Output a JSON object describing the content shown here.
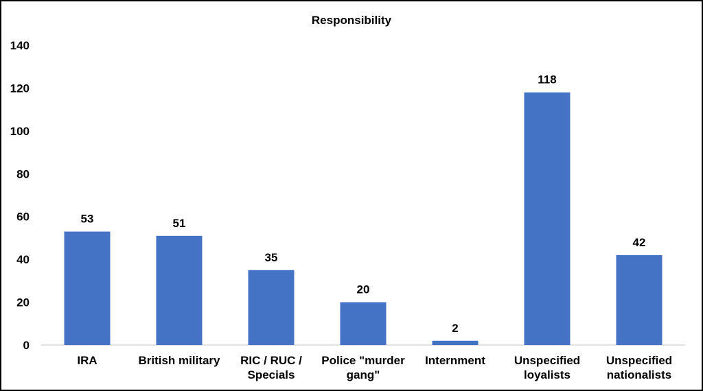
{
  "chart_data": {
    "type": "bar",
    "title": "Responsibility",
    "xlabel": "",
    "ylabel": "",
    "categories": [
      [
        "IRA"
      ],
      [
        "British military"
      ],
      [
        "RIC / RUC /",
        "Specials"
      ],
      [
        "Police \"murder",
        "gang\""
      ],
      [
        "Internment"
      ],
      [
        "Unspecified",
        "loyalists"
      ],
      [
        "Unspecified",
        "nationalists"
      ]
    ],
    "values": [
      53,
      51,
      35,
      20,
      2,
      118,
      42
    ],
    "ylim": [
      0,
      140
    ],
    "yticks": [
      0,
      20,
      40,
      60,
      80,
      100,
      120,
      140
    ],
    "grid": false,
    "legend": "none",
    "bar_color": "#4472C4",
    "axis_color": "#D9D9D9"
  }
}
